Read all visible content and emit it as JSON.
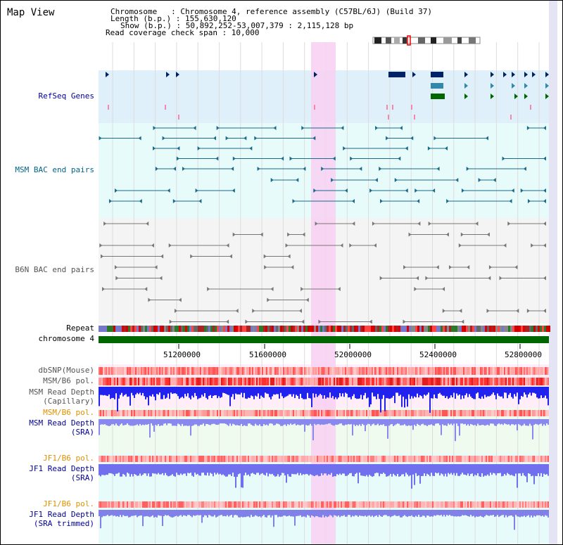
{
  "header": {
    "title": "Map View",
    "chromosome_line": "Chromosome   : Chromosome 4, reference assembly (C57BL/6J) (Build 37)",
    "length_line": "Length (b.p.) : 155,630,120",
    "show_line": "Show (b.p.) : 50,892,252-53,007,379 : 2,115,128 bp",
    "coverage_line": "Read coverage check span : 10,000"
  },
  "tracks": {
    "refseq": "RefSeq Genes",
    "msm_bac": "MSM BAC end pairs",
    "b6n_bac": "B6N BAC end pairs",
    "repeat": "Repeat",
    "chromosome": "chromosome 4",
    "dbsnp": "dbSNP(Mouse)",
    "msm_b6_pol_1": "MSM/B6 pol.",
    "msm_depth_cap_1": "MSM Read Depth",
    "msm_depth_cap_2": "(Capillary)",
    "msm_b6_pol_2": "MSM/B6 pol.",
    "msm_depth_sra_1": "MSM Read Depth",
    "msm_depth_sra_2": "(SRA)",
    "jf1_b6_pol_1": "JF1/B6 pol.",
    "jf1_depth_sra_1": "JF1 Read Depth",
    "jf1_depth_sra_2": "(SRA)",
    "jf1_b6_pol_2": "JF1/B6 pol.",
    "jf1_depth_trim_1": "JF1 Read Depth",
    "jf1_depth_trim_2": "(SRA trimmed)"
  },
  "axis": {
    "ticks": [
      "51200000",
      "51600000",
      "52000000",
      "52400000",
      "52800000"
    ]
  },
  "colors": {
    "refseq_label": "#000099",
    "msm_label": "#006688",
    "b6n_label": "#555555",
    "pol_orange": "#e09000",
    "depth_blue": "#000099",
    "highlight": "#f8d8f4",
    "chromosome_green": "#006600"
  }
}
